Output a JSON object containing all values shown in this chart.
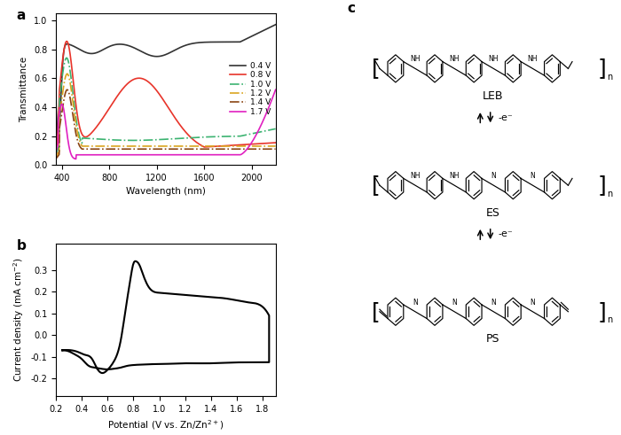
{
  "panel_a_label": "a",
  "panel_b_label": "b",
  "panel_c_label": "c",
  "a_xlabel": "Wavelength (nm)",
  "a_ylabel": "Transmittance",
  "a_xlim": [
    350,
    2200
  ],
  "a_ylim": [
    0.0,
    1.05
  ],
  "a_yticks": [
    0.0,
    0.2,
    0.4,
    0.6,
    0.8,
    1.0
  ],
  "a_xticks": [
    400,
    800,
    1200,
    1600,
    2000
  ],
  "b_xlabel": "Potential (V vs. Zn/Zn2+)",
  "b_ylabel": "Current density (mA cm-2)",
  "b_xlim": [
    0.2,
    1.9
  ],
  "b_ylim": [
    -0.28,
    0.42
  ],
  "b_xticks": [
    0.2,
    0.4,
    0.6,
    0.8,
    1.0,
    1.2,
    1.4,
    1.6,
    1.8
  ],
  "b_yticks": [
    -0.2,
    -0.1,
    0.0,
    0.1,
    0.2,
    0.3
  ],
  "curves": [
    {
      "label": "0.4 V",
      "color": "#333333",
      "linestyle": "-",
      "linewidth": 1.2
    },
    {
      "label": "0.8 V",
      "color": "#e8342a",
      "linestyle": "-",
      "linewidth": 1.2
    },
    {
      "label": "1.0 V",
      "color": "#3cb371",
      "linestyle": "-.",
      "linewidth": 1.2
    },
    {
      "label": "1.2 V",
      "color": "#daa520",
      "linestyle": "-.",
      "linewidth": 1.2
    },
    {
      "label": "1.4 V",
      "color": "#8b4513",
      "linestyle": "-.",
      "linewidth": 1.2
    },
    {
      "label": "1.7 V",
      "color": "#e020c0",
      "linestyle": "-",
      "linewidth": 1.2
    }
  ],
  "background_color": "#ffffff",
  "leb_label": "LEB",
  "es_label": "ES",
  "ps_label": "PS"
}
